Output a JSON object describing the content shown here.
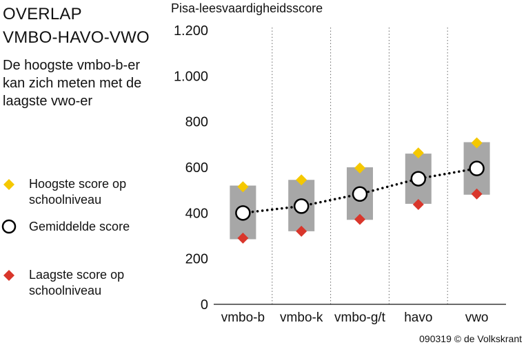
{
  "header": {
    "title_line1": "OVERLAP",
    "title_line2": "VMBO-HAVO-VWO",
    "subtitle": "De hoogste vmbo-b-er kan zich meten met de laagste vwo-er"
  },
  "legend": {
    "highest": "Hoogste score op schoolniveau",
    "mean": "Gemiddelde score",
    "lowest": "Laagste score op schoolniveau"
  },
  "credit": "090319 © de Volkskrant",
  "colors": {
    "highest": "#f5c800",
    "lowest": "#d9362b",
    "range": "#a7a7a7",
    "mean_fill": "#ffffff",
    "mean_stroke": "#000000"
  },
  "chart_data": {
    "type": "range-dot",
    "ylabel": "Pisa-leesvaardigheidsscore",
    "ylim": [
      0,
      1200
    ],
    "yticks": [
      0,
      200,
      400,
      600,
      800,
      1000,
      1200
    ],
    "ytick_labels": [
      "0",
      "200",
      "400",
      "600",
      "800",
      "1.000",
      "1.200"
    ],
    "categories": [
      "vmbo-b",
      "vmbo-k",
      "vmbo-g/t",
      "havo",
      "vwo"
    ],
    "range_low": [
      285,
      320,
      370,
      440,
      480
    ],
    "range_high": [
      520,
      545,
      600,
      660,
      710
    ],
    "series": [
      {
        "name": "Hoogste score op schoolniveau",
        "values": [
          515,
          545,
          597,
          663,
          707
        ]
      },
      {
        "name": "Gemiddelde score",
        "values": [
          400,
          430,
          483,
          550,
          595
        ]
      },
      {
        "name": "Laagste score op schoolniveau",
        "values": [
          290,
          320,
          372,
          437,
          483
        ]
      }
    ],
    "mean_line": "dotted",
    "grid": "vertical dotted separators"
  }
}
